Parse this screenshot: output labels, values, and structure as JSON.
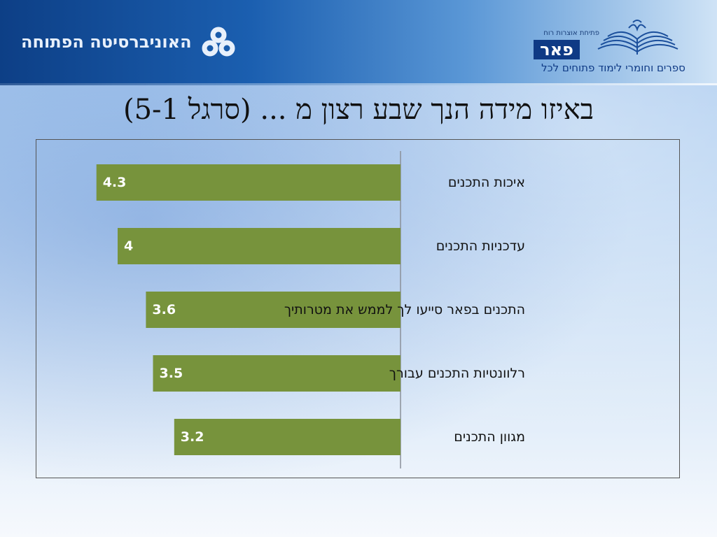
{
  "header": {
    "university_name": "האוניברסיטה הפתוחה",
    "peer_logo": {
      "top_text": "פתיחת אוצרות רוח",
      "brand": "פאר",
      "tagline": "ספרים וחומרי לימוד פתוחים לכל"
    }
  },
  "title": "באיזו מידה הנך שבע רצון מ ... (סרגל 5-1)",
  "colors": {
    "bar": "#77933c",
    "axis": "#8a9099",
    "header_dark": "#0d3f86"
  },
  "chart_data": {
    "type": "bar",
    "orientation": "horizontal",
    "categories": [
      "איכות התכנים",
      "עדכניות התכנים",
      "התכנים בפאר סייעו לך לממש את מטרותיך",
      "רלוונטיות התכנים עבורך",
      "מגוון התכנים"
    ],
    "values": [
      4.3,
      4,
      3.6,
      3.5,
      3.2
    ],
    "value_labels": [
      "4.3",
      "4",
      "3.6",
      "3.5",
      "3.2"
    ],
    "xlim": [
      0,
      5
    ],
    "direction": "right-to-left",
    "grid": false,
    "legend": "none",
    "title": "",
    "xlabel": "",
    "ylabel": ""
  }
}
